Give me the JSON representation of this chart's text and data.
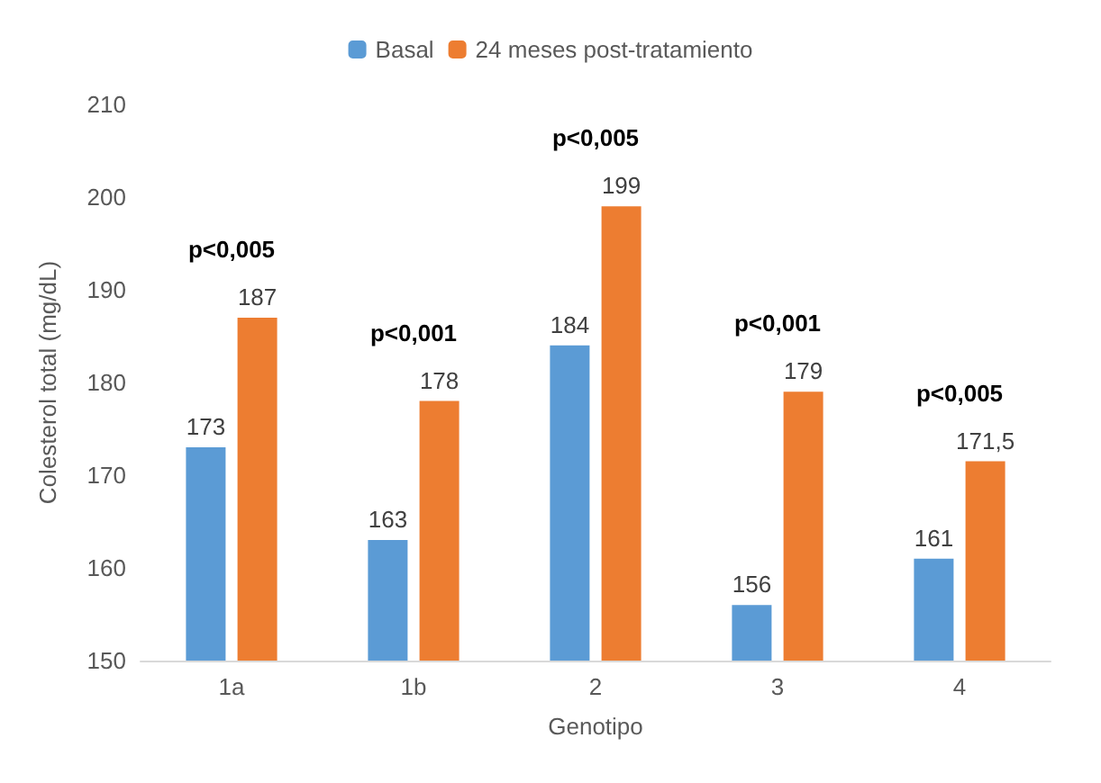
{
  "chart_data": {
    "type": "bar",
    "xlabel": "Genotipo",
    "ylabel": "Colesterol total (mg/dL)",
    "categories": [
      "1a",
      "1b",
      "2",
      "3",
      "4"
    ],
    "series": [
      {
        "name": "Basal",
        "color": "#5b9bd5",
        "values": [
          173,
          163,
          184,
          156,
          161
        ],
        "value_labels": [
          "173",
          "163",
          "184",
          "156",
          "161"
        ]
      },
      {
        "name": "24 meses post-tratamiento",
        "color": "#ed7d31",
        "values": [
          187,
          178,
          199,
          179,
          171.5
        ],
        "value_labels": [
          "187",
          "178",
          "199",
          "179",
          "171,5"
        ]
      }
    ],
    "ylim": [
      150,
      210
    ],
    "yticks": [
      150,
      160,
      170,
      180,
      190,
      200,
      210
    ],
    "grid": false,
    "legend": "top",
    "annotations": [
      "p<0,005",
      "p<0,001",
      "p<0,005",
      "p<0,001",
      "p<0,005"
    ]
  }
}
